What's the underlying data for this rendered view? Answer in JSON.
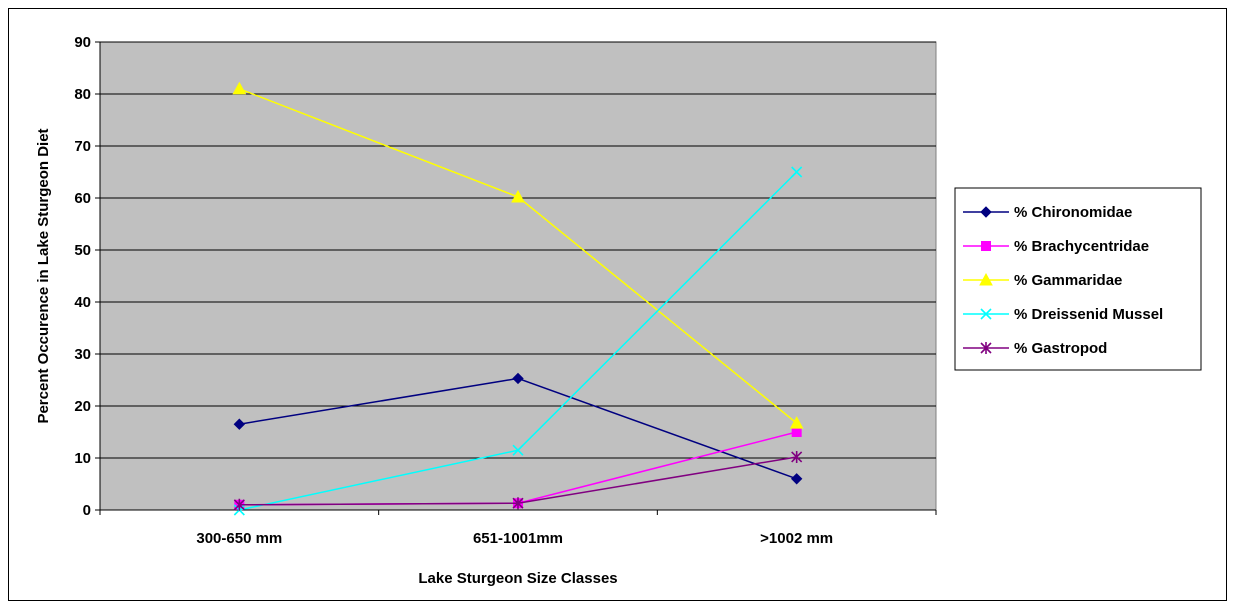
{
  "chart_data": {
    "type": "line",
    "title": "",
    "xlabel": "Lake Sturgeon Size Classes",
    "ylabel": "Percent Occurence in Lake Sturgeon Diet",
    "categories": [
      "300-650 mm",
      "651-1001mm",
      ">1002 mm"
    ],
    "ylim": [
      0,
      90
    ],
    "yticks": [
      0,
      10,
      20,
      30,
      40,
      50,
      60,
      70,
      80,
      90
    ],
    "grid": true,
    "plot_background": "#C0C0C0",
    "legend_position": "right",
    "series": [
      {
        "name": "% Chironomidae",
        "values": [
          16.5,
          25.3,
          6.0
        ],
        "color": "#000080",
        "marker": "diamond"
      },
      {
        "name": "% Brachycentridae",
        "values": [
          1.0,
          1.3,
          15.0
        ],
        "color": "#FF00FF",
        "marker": "square"
      },
      {
        "name": "% Gammaridae",
        "values": [
          81.0,
          60.2,
          16.7
        ],
        "color": "#FFFF00",
        "marker": "triangle"
      },
      {
        "name": "% Dreissenid Mussel",
        "values": [
          0.0,
          11.5,
          65.0
        ],
        "color": "#00FFFF",
        "marker": "x"
      },
      {
        "name": "% Gastropod",
        "values": [
          1.0,
          1.3,
          10.2
        ],
        "color": "#800080",
        "marker": "star"
      }
    ]
  }
}
